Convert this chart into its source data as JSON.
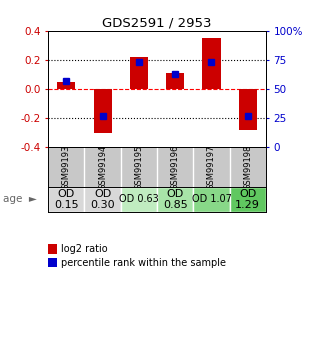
{
  "title": "GDS2591 / 2953",
  "samples": [
    "GSM99193",
    "GSM99194",
    "GSM99195",
    "GSM99196",
    "GSM99197",
    "GSM99198"
  ],
  "log2_ratio": [
    0.05,
    -0.3,
    0.22,
    0.11,
    0.35,
    -0.28
  ],
  "percentile_rank": [
    57,
    27,
    73,
    63,
    73,
    27
  ],
  "bar_color": "#cc0000",
  "dot_color": "#0000cc",
  "ylim": [
    -0.4,
    0.4
  ],
  "y2lim": [
    0,
    100
  ],
  "yticks": [
    -0.4,
    -0.2,
    0.0,
    0.2,
    0.4
  ],
  "y2ticks": [
    0,
    25,
    50,
    75,
    100
  ],
  "y2ticklabels": [
    "0",
    "25",
    "50",
    "75",
    "100%"
  ],
  "hlines": [
    0.2,
    0.0,
    -0.2
  ],
  "hline_styles": [
    "dotted",
    "dashed",
    "dotted"
  ],
  "hline_colors": [
    "black",
    "red",
    "black"
  ],
  "row1_labels": [
    "OD\n0.15",
    "OD\n0.30",
    "OD 0.63",
    "OD\n0.85",
    "OD 1.07",
    "OD\n1.29"
  ],
  "row1_colors": [
    "#d8d8d8",
    "#d8d8d8",
    "#c0ecc0",
    "#a8e4a8",
    "#88d888",
    "#60c860"
  ],
  "row1_fontsize": [
    8,
    8,
    7,
    8,
    7,
    8
  ],
  "gsm_bg_color": "#c8c8c8",
  "legend_items": [
    "log2 ratio",
    "percentile rank within the sample"
  ],
  "left_axis_color": "#cc0000",
  "right_axis_color": "#0000cc",
  "bar_width": 0.5
}
